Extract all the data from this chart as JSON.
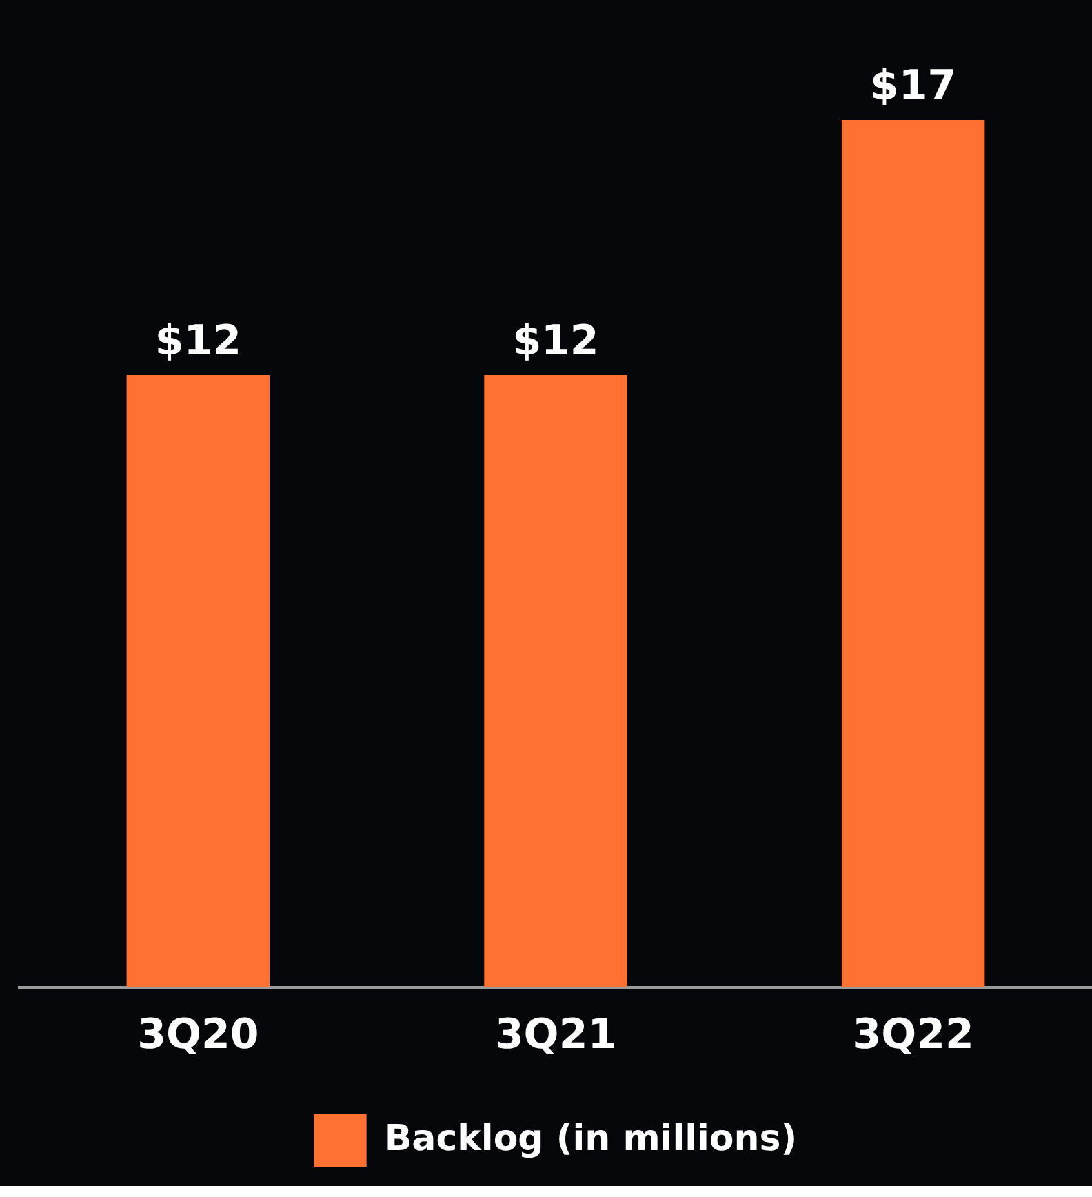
{
  "chart_data": {
    "type": "bar",
    "categories": [
      "3Q20",
      "3Q21",
      "3Q22"
    ],
    "series": [
      {
        "name": "Backlog (in millions)",
        "color": "#ff7033",
        "values": [
          12,
          12,
          17
        ],
        "value_labels": [
          "$12",
          "$12",
          "$17"
        ]
      }
    ],
    "legend": "bottom"
  }
}
